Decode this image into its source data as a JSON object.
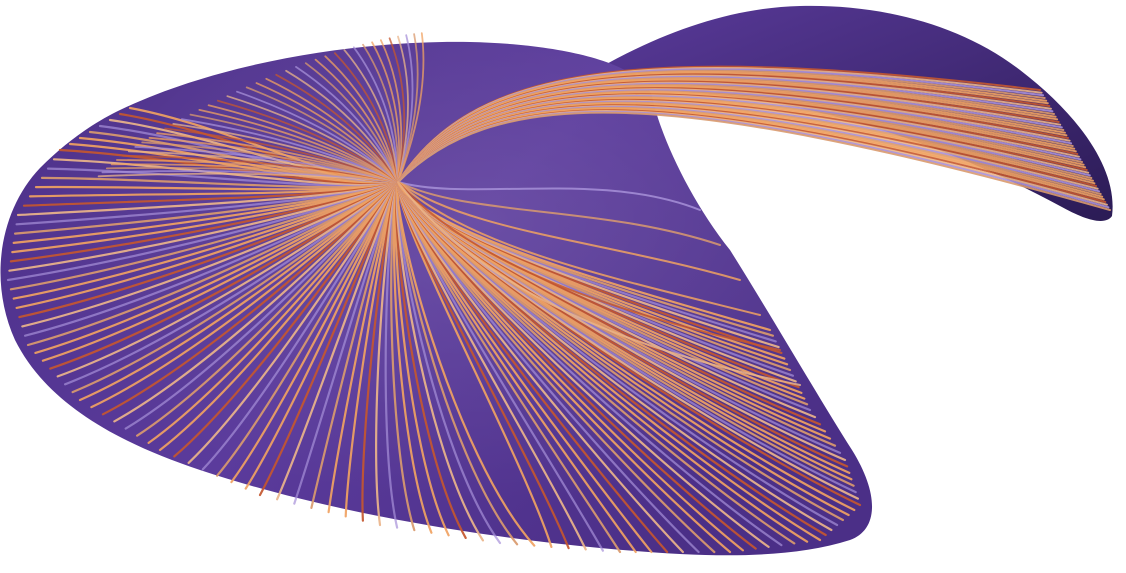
{
  "artwork": {
    "subject": "abstract-twisted-ribbon-with-flowing-lines",
    "palette": {
      "surface_light": "#5b3b9c",
      "surface_mid": "#4b2f87",
      "surface_dark": "#2b1b55",
      "strand_orange": "#f0a262",
      "strand_rust": "#c4572f",
      "strand_peach": "#eab48a",
      "strand_lavender": "#a790d8",
      "strand_tan": "#d99a6e"
    },
    "strand_count_upper_fan": 40,
    "strand_count_lower_fan": 120,
    "strand_count_ribbon_tail": 46
  }
}
